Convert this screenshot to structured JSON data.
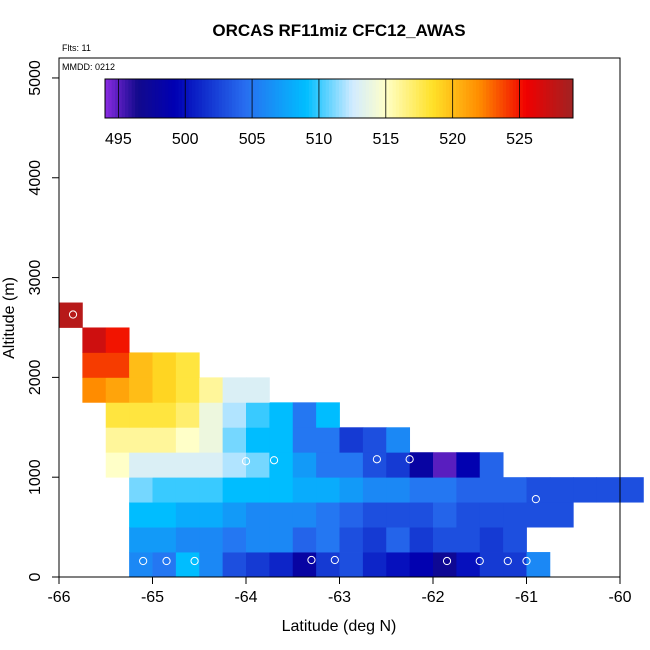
{
  "chart_data": {
    "type": "heatmap",
    "title": "ORCAS RF11miz CFC12_AWAS",
    "xlabel": "Latitude (deg N)",
    "ylabel": "Altitude (m)",
    "xlim": [
      -66,
      -60
    ],
    "ylim": [
      0,
      5200
    ],
    "x_ticks": [
      "-66",
      "-65",
      "-64",
      "-63",
      "-62",
      "-61",
      "-60"
    ],
    "y_ticks": [
      "0",
      "1000",
      "2000",
      "3000",
      "4000",
      "5000"
    ],
    "annotation_flts": "Flts: 11",
    "annotation_mmdd": "MMDD: 0212",
    "colorbar": {
      "min": 494,
      "max": 529,
      "tick_values": [
        495,
        500,
        505,
        510,
        515,
        520,
        525
      ],
      "tick_labels": [
        "495",
        "500",
        "505",
        "510",
        "515",
        "520",
        "525"
      ]
    },
    "cell_size": {
      "lat": 0.25,
      "alt": 250
    },
    "rows": [
      {
        "alt0": 0,
        "lat0": -65.25,
        "values": [
          506,
          505,
          509,
          506,
          503,
          502,
          501,
          498,
          502,
          503,
          501,
          500,
          499,
          497,
          500,
          502,
          502,
          506
        ]
      },
      {
        "alt0": 250,
        "lat0": -65.25,
        "values": [
          507,
          507,
          506,
          506,
          505,
          506,
          506,
          504,
          505,
          503,
          502,
          504,
          502,
          503,
          503,
          502,
          503
        ]
      },
      {
        "alt0": 500,
        "lat0": -65.25,
        "values": [
          509,
          509,
          508,
          508,
          507,
          506,
          506,
          506,
          505,
          504,
          503,
          503,
          503,
          504,
          503,
          503,
          503,
          503,
          503
        ]
      },
      {
        "alt0": 750,
        "lat0": -65.25,
        "values": [
          511,
          510,
          510,
          510,
          509,
          509,
          509,
          508,
          508,
          507,
          506,
          506,
          505,
          505,
          504,
          504,
          504,
          503,
          503,
          503,
          503,
          503
        ]
      },
      {
        "alt0": 1000,
        "lat0": -65.5,
        "values": [
          515,
          513,
          513,
          513,
          513,
          512,
          511,
          509,
          507,
          505,
          505,
          503,
          502,
          498,
          495,
          499,
          504
        ]
      },
      {
        "alt0": 1250,
        "lat0": -65.5,
        "values": [
          516,
          516,
          516,
          515,
          514,
          511,
          509,
          509,
          505,
          505,
          502,
          503,
          506
        ]
      },
      {
        "alt0": 1500,
        "lat0": -65.5,
        "values": [
          518,
          518,
          518,
          517,
          514,
          512,
          510,
          509,
          505,
          509
        ]
      },
      {
        "alt0": 1750,
        "lat0": -65.75,
        "values": [
          522,
          521,
          520,
          519,
          518,
          516,
          513,
          513
        ]
      },
      {
        "alt0": 2000,
        "lat0": -65.75,
        "values": [
          524,
          524,
          520,
          519,
          518
        ]
      },
      {
        "alt0": 2250,
        "lat0": -65.75,
        "values": [
          527,
          525
        ]
      },
      {
        "alt0": 2500,
        "lat0": -66,
        "values": [
          528
        ]
      }
    ],
    "sample_points": [
      [
        -65.1,
        160
      ],
      [
        -64.85,
        160
      ],
      [
        -64.55,
        160
      ],
      [
        -63.3,
        170
      ],
      [
        -63.05,
        170
      ],
      [
        -61.85,
        160
      ],
      [
        -61.5,
        160
      ],
      [
        -61.2,
        160
      ],
      [
        -61.0,
        160
      ],
      [
        -60.9,
        780
      ],
      [
        -62.25,
        1180
      ],
      [
        -62.6,
        1180
      ],
      [
        -63.7,
        1170
      ],
      [
        -64.0,
        1160
      ],
      [
        -65.85,
        2630
      ]
    ]
  }
}
